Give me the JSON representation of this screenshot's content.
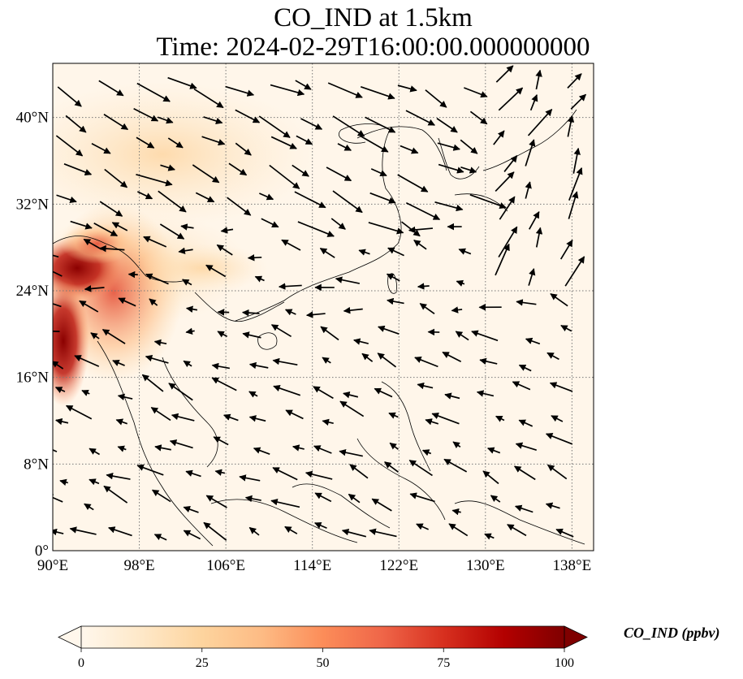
{
  "title": {
    "line1": "CO_IND at 1.5km",
    "line2": "Time: 2024-02-29T16:00:00.000000000"
  },
  "map": {
    "projection": "PlateCarree",
    "lon_range": [
      90,
      140
    ],
    "lat_range": [
      0,
      45
    ],
    "gridlines": "dotted",
    "x_ticks": [
      "90°E",
      "98°E",
      "106°E",
      "114°E",
      "122°E",
      "130°E",
      "138°E"
    ],
    "y_ticks": [
      "0°",
      "8°N",
      "16°N",
      "24°N",
      "32°N",
      "40°N"
    ],
    "colormap": "OrRd",
    "field_hotspot": "high CO over northeast India / Myanmar / Bangladesh around 92–98°E, 14–29°N; low elsewhere",
    "wind_vectors": "westerly over north/mid-latitudes, northeasterly trades over the South China Sea and tropics"
  },
  "colorbar": {
    "label": "CO_IND (ppbv)",
    "min": 0,
    "max": 100,
    "extend": "both",
    "ticks": [
      "0",
      "25",
      "50",
      "75",
      "100"
    ],
    "colors": [
      "#fff7ec",
      "#fee8c8",
      "#fdd49e",
      "#fdbb84",
      "#fc8d59",
      "#ef6548",
      "#d7301f",
      "#b30000",
      "#7f0000"
    ]
  }
}
